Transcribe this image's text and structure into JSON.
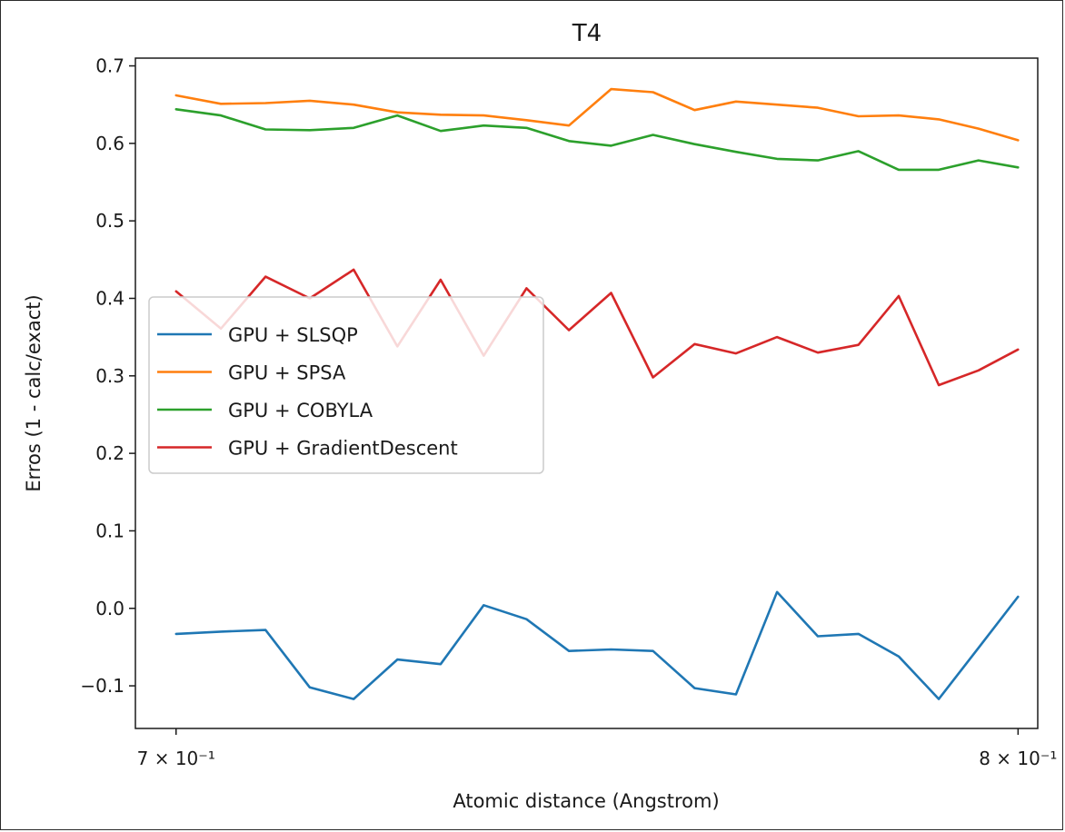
{
  "chart_data": {
    "type": "line",
    "title": "T4",
    "xlabel": "Atomic distance (Angstrom)",
    "ylabel": "Erros (1 - calc/exact)",
    "x_scale": "log",
    "xlim": [
      0.6955,
      0.8025
    ],
    "ylim": [
      -0.155,
      0.71
    ],
    "grid": false,
    "legend_position": "center-left",
    "x": [
      0.7,
      0.705,
      0.71,
      0.715,
      0.72,
      0.725,
      0.73,
      0.735,
      0.74,
      0.745,
      0.75,
      0.755,
      0.76,
      0.765,
      0.77,
      0.775,
      0.78,
      0.785,
      0.79,
      0.795,
      0.8
    ],
    "x_ticks": [
      {
        "value": 0.7,
        "label": "7 × 10⁻¹"
      },
      {
        "value": 0.8,
        "label": "8 × 10⁻¹"
      }
    ],
    "y_ticks": [
      {
        "value": 0.7,
        "label": "0.7"
      },
      {
        "value": 0.6,
        "label": "0.6"
      },
      {
        "value": 0.5,
        "label": "0.5"
      },
      {
        "value": 0.4,
        "label": "0.4"
      },
      {
        "value": 0.3,
        "label": "0.3"
      },
      {
        "value": 0.2,
        "label": "0.2"
      },
      {
        "value": 0.1,
        "label": "0.1"
      },
      {
        "value": 0.0,
        "label": "0.0"
      },
      {
        "value": -0.1,
        "label": "−0.1"
      }
    ],
    "series": [
      {
        "name": "GPU + SLSQP",
        "color": "#1f77b4",
        "values": [
          -0.033,
          -0.03,
          -0.028,
          -0.102,
          -0.117,
          -0.066,
          -0.072,
          0.004,
          -0.014,
          -0.055,
          -0.053,
          -0.055,
          -0.103,
          -0.111,
          0.021,
          -0.036,
          -0.033,
          -0.062,
          -0.117,
          -0.051,
          0.015
        ]
      },
      {
        "name": "GPU + SPSA",
        "color": "#ff7f0e",
        "values": [
          0.662,
          0.651,
          0.652,
          0.655,
          0.65,
          0.64,
          0.637,
          0.636,
          0.63,
          0.623,
          0.67,
          0.666,
          0.643,
          0.654,
          0.65,
          0.646,
          0.635,
          0.636,
          0.631,
          0.619,
          0.604
        ]
      },
      {
        "name": "GPU + COBYLA",
        "color": "#2ca02c",
        "values": [
          0.644,
          0.636,
          0.618,
          0.617,
          0.62,
          0.636,
          0.616,
          0.623,
          0.62,
          0.603,
          0.597,
          0.611,
          0.599,
          0.589,
          0.58,
          0.578,
          0.59,
          0.566,
          0.566,
          0.578,
          0.569
        ]
      },
      {
        "name": "GPU + GradientDescent",
        "color": "#d62728",
        "values": [
          0.409,
          0.361,
          0.428,
          0.4,
          0.437,
          0.338,
          0.424,
          0.326,
          0.413,
          0.359,
          0.407,
          0.298,
          0.341,
          0.329,
          0.35,
          0.33,
          0.34,
          0.403,
          0.288,
          0.307,
          0.334
        ]
      }
    ]
  }
}
